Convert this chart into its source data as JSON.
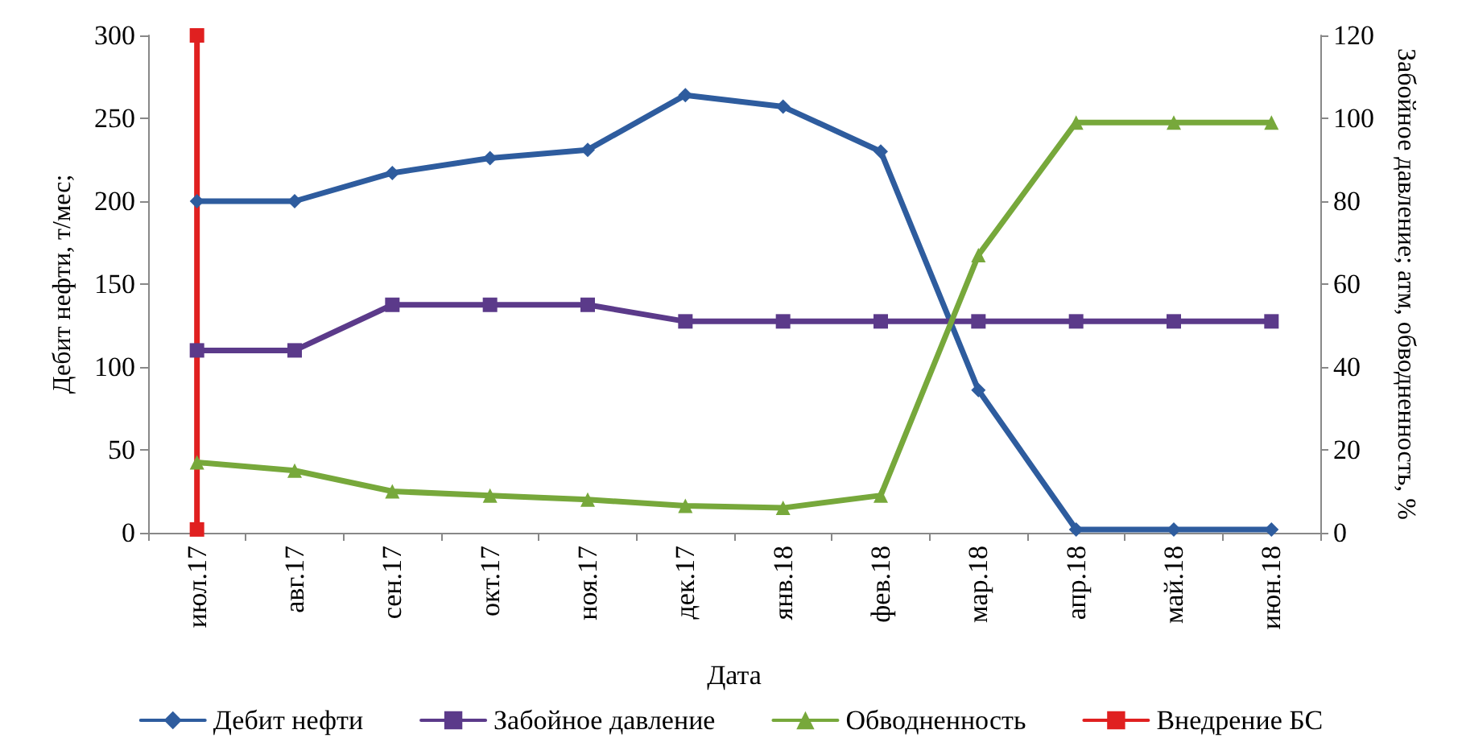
{
  "chart_data": {
    "type": "line",
    "xlabel": "Дата",
    "ylabel": "Дебит нефти, т/мес;",
    "y2label": "Забойное давление; атм, обводненность, %",
    "categories": [
      "июл.17",
      "авг.17",
      "сен.17",
      "окт.17",
      "ноя.17",
      "дек.17",
      "янв.18",
      "фев.18",
      "мар.18",
      "апр.18",
      "май.18",
      "июн.18"
    ],
    "series": [
      {
        "name": "Дебит нефти",
        "color": "#2e5c9e",
        "marker": "diamond",
        "values": [
          200,
          200,
          217,
          226,
          231,
          264,
          257,
          230,
          86,
          2,
          2,
          2
        ]
      },
      {
        "name": "Забойное давление",
        "color": "#5b3a8a",
        "marker": "square",
        "axis": "y2",
        "values": [
          44,
          44,
          55,
          55,
          55,
          51,
          51,
          51,
          51,
          51,
          51,
          51
        ]
      },
      {
        "name": "Обводненность",
        "color": "#77a83b",
        "marker": "triangle",
        "axis": "y2",
        "values": [
          17,
          15,
          10,
          9,
          8,
          6.5,
          6,
          9,
          67,
          99,
          99,
          99
        ]
      },
      {
        "name": "Внедрение БС",
        "color": "#e02020",
        "marker": "square",
        "x": [
          "июл.17",
          "июл.17"
        ],
        "values": [
          2,
          300
        ]
      }
    ],
    "ylim": [
      0,
      300
    ],
    "yticks": [
      0,
      50,
      100,
      150,
      200,
      250,
      300
    ],
    "y2lim": [
      0,
      120
    ],
    "y2ticks": [
      0,
      20,
      40,
      60,
      80,
      100,
      120
    ],
    "grid": false,
    "legend": "bottom",
    "line_style": "solid"
  }
}
